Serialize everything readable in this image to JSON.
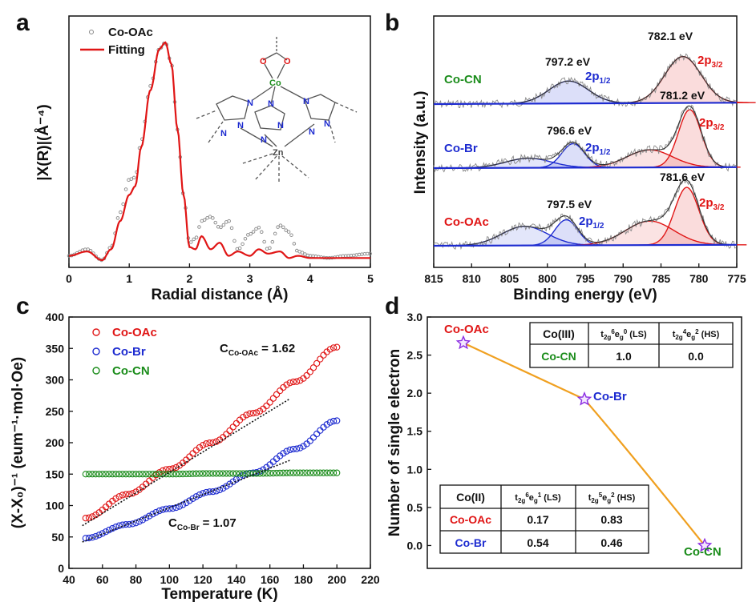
{
  "panels": {
    "a": {
      "label": "a",
      "xlabel": "Radial distance (Å)",
      "ylabel": "|X(R)|(Å⁻⁴)",
      "xlim": [
        0,
        5
      ],
      "xticks": [
        "0",
        "1",
        "2",
        "3",
        "4",
        "5"
      ],
      "legend": [
        "Co-OAc",
        "Fitting"
      ],
      "colors": {
        "data": "#888888",
        "fit": "#e01515"
      },
      "structure_labels": [
        "O",
        "O",
        "Co",
        "N",
        "N",
        "N",
        "N",
        "N",
        "N",
        "N",
        "N",
        "N",
        "Zn"
      ]
    },
    "b": {
      "label": "b",
      "xlabel": "Binding energy (eV)",
      "ylabel": "Intensity (a.u.)",
      "xlim": [
        815,
        775
      ],
      "xticks": [
        "815",
        "810",
        "805",
        "800",
        "795",
        "790",
        "785",
        "780",
        "775"
      ],
      "spectra": [
        {
          "name": "Co-CN",
          "color": "#1a8c1a",
          "peak_2p12": "797.2 eV",
          "peak_2p32": "782.1 eV"
        },
        {
          "name": "Co-Br",
          "color": "#1d2bd0",
          "peak_2p12": "796.6 eV",
          "peak_2p32": "781.2 eV"
        },
        {
          "name": "Co-OAc",
          "color": "#e01515",
          "peak_2p12": "797.5 eV",
          "peak_2p32": "781.6 eV"
        }
      ],
      "label_2p12": "2p",
      "sub_2p12": "1/2",
      "label_2p32": "2p",
      "sub_2p32": "3/2"
    },
    "c": {
      "label": "c",
      "xlabel": "Temperature (K)",
      "ylabel": "(X-X₀)⁻¹ (eum⁻¹·mol·Oe)",
      "xlim": [
        40,
        220
      ],
      "ylim": [
        0,
        400
      ],
      "xticks": [
        "40",
        "60",
        "80",
        "100",
        "120",
        "140",
        "160",
        "180",
        "200",
        "220"
      ],
      "yticks": [
        "0",
        "50",
        "100",
        "150",
        "200",
        "250",
        "300",
        "350",
        "400"
      ],
      "legend": [
        "Co-OAc",
        "Co-Br",
        "Co-CN"
      ],
      "c_oac_label": "C",
      "c_oac_sub": "Co-OAc",
      "c_oac_value": "= 1.62",
      "c_br_label": "C",
      "c_br_sub": "Co-Br",
      "c_br_value": "= 1.07"
    },
    "d": {
      "label": "d",
      "ylabel": "Number of single electron",
      "ylim": [
        -0.3,
        3.0
      ],
      "yticks": [
        "0.0",
        "0.5",
        "1.0",
        "1.5",
        "2.0",
        "2.5",
        "3.0"
      ],
      "points": [
        {
          "name": "Co-OAc",
          "value": 2.66,
          "color": "#e01515"
        },
        {
          "name": "Co-Br",
          "value": 1.92,
          "color": "#1d2bd0"
        },
        {
          "name": "Co-CN",
          "value": 0.0,
          "color": "#1a8c1a"
        }
      ],
      "table_co3": {
        "header": [
          "Co(III)",
          "t2g6eg0 (LS)",
          "t2g4eg2 (HS)"
        ],
        "rows": [
          [
            "Co-CN",
            "1.0",
            "0.0"
          ]
        ]
      },
      "table_co2": {
        "header": [
          "Co(II)",
          "t2g6eg1 (LS)",
          "t2g5eg2 (HS)"
        ],
        "rows": [
          [
            "Co-OAc",
            "0.17",
            "0.83"
          ],
          [
            "Co-Br",
            "0.54",
            "0.46"
          ]
        ]
      }
    }
  },
  "chart_data": [
    {
      "type": "line",
      "title": "",
      "xlabel": "Radial distance (Å)",
      "ylabel": "|X(R)|(Å⁻⁴)",
      "xlim": [
        0,
        5
      ],
      "series": [
        {
          "name": "Co-OAc",
          "x": [
            0,
            0.3,
            0.55,
            0.7,
            0.85,
            1.0,
            1.1,
            1.2,
            1.35,
            1.5,
            1.6,
            1.7,
            1.8,
            1.9,
            2.0,
            2.1,
            2.2,
            2.35,
            2.5,
            2.65,
            2.8,
            3.0,
            3.15,
            3.3,
            3.5,
            3.65,
            3.8,
            4.0,
            4.3,
            4.6,
            5.0
          ],
          "y": [
            0.02,
            0.05,
            0.0,
            0.06,
            0.22,
            0.37,
            0.38,
            0.55,
            0.8,
            0.97,
            1.0,
            0.9,
            0.6,
            0.3,
            0.08,
            0.1,
            0.18,
            0.2,
            0.15,
            0.18,
            0.05,
            0.12,
            0.15,
            0.05,
            0.16,
            0.13,
            0.04,
            0.02,
            0.01,
            0.02,
            0.03
          ]
        },
        {
          "name": "Fitting",
          "x": [
            0,
            0.3,
            0.55,
            0.7,
            0.85,
            1.0,
            1.1,
            1.2,
            1.35,
            1.5,
            1.6,
            1.7,
            1.8,
            1.9,
            2.0,
            2.1,
            2.2,
            2.35,
            2.5,
            2.65,
            2.8,
            3.0,
            3.15,
            3.3,
            3.5,
            3.65,
            3.8,
            4.0,
            4.3,
            4.6,
            5.0
          ],
          "y": [
            0.02,
            0.04,
            0.0,
            0.05,
            0.18,
            0.3,
            0.34,
            0.52,
            0.78,
            0.97,
            1.0,
            0.9,
            0.6,
            0.3,
            0.06,
            0.05,
            0.11,
            0.05,
            0.08,
            0.02,
            0.04,
            0.02,
            0.05,
            0.03,
            0.04,
            0.01,
            0.02,
            0.01,
            0.01,
            0.01,
            0.01
          ]
        }
      ]
    },
    {
      "type": "line",
      "title": "",
      "xlabel": "Binding energy (eV)",
      "ylabel": "Intensity (a.u.)",
      "xlim": [
        815,
        775
      ],
      "series": [
        {
          "name": "Co-CN 2p1/2 peak",
          "center": 797.2
        },
        {
          "name": "Co-CN 2p3/2 peak",
          "center": 782.1
        },
        {
          "name": "Co-Br 2p1/2 peak",
          "center": 796.6
        },
        {
          "name": "Co-Br 2p3/2 peak",
          "center": 781.2
        },
        {
          "name": "Co-OAc 2p1/2 peak",
          "center": 797.5
        },
        {
          "name": "Co-OAc 2p3/2 peak",
          "center": 781.6
        }
      ]
    },
    {
      "type": "scatter",
      "title": "",
      "xlabel": "Temperature (K)",
      "ylabel": "(X-X₀)⁻¹ (eum⁻¹·mol·Oe)",
      "xlim": [
        40,
        220
      ],
      "ylim": [
        0,
        400
      ],
      "series": [
        {
          "name": "Co-OAc",
          "x": [
            50,
            75,
            100,
            125,
            150,
            175,
            200
          ],
          "y": [
            80,
            118,
            158,
            200,
            247,
            297,
            352
          ]
        },
        {
          "name": "Co-Br",
          "x": [
            50,
            75,
            100,
            125,
            150,
            175,
            200
          ],
          "y": [
            48,
            70,
            95,
            122,
            152,
            190,
            235
          ]
        },
        {
          "name": "Co-CN",
          "x": [
            50,
            75,
            100,
            125,
            150,
            175,
            200
          ],
          "y": [
            150,
            150,
            150,
            151,
            151,
            152,
            152
          ]
        }
      ]
    },
    {
      "type": "line",
      "title": "",
      "xlabel": "",
      "ylabel": "Number of single electron",
      "ylim": [
        -0.3,
        3.0
      ],
      "categories": [
        "Co-OAc",
        "Co-Br",
        "Co-CN"
      ],
      "values": [
        2.66,
        1.92,
        0.0
      ]
    }
  ]
}
